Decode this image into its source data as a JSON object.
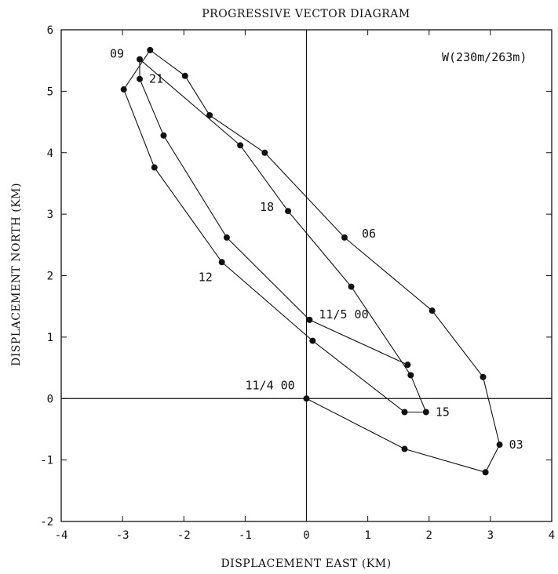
{
  "chart_data": {
    "type": "line",
    "title": "PROGRESSIVE VECTOR DIAGRAM",
    "xlabel": "DISPLACEMENT EAST (KM)",
    "ylabel": "DISPLACEMENT NORTH (KM)",
    "xlim": [
      -4,
      4
    ],
    "ylim": [
      -2,
      6
    ],
    "xticks": [
      -4,
      -3,
      -2,
      -1,
      0,
      1,
      2,
      3,
      4
    ],
    "yticks": [
      -2,
      -1,
      0,
      1,
      2,
      3,
      4,
      5,
      6
    ],
    "grid": false,
    "zero_lines": true,
    "legend": {
      "label": "W(230m/263m)",
      "placement": "top-right"
    },
    "series": [
      {
        "points": [
          {
            "x": 0.0,
            "y": 0.0
          },
          {
            "x": 1.6,
            "y": -0.82
          },
          {
            "x": 2.92,
            "y": -1.2
          },
          {
            "x": 3.15,
            "y": -0.75
          },
          {
            "x": 2.88,
            "y": 0.35
          },
          {
            "x": 2.05,
            "y": 1.43
          },
          {
            "x": 0.62,
            "y": 2.62
          },
          {
            "x": -0.68,
            "y": 4.0
          },
          {
            "x": -1.58,
            "y": 4.61
          },
          {
            "x": -1.98,
            "y": 5.25
          },
          {
            "x": -2.55,
            "y": 5.67
          },
          {
            "x": -2.98,
            "y": 5.03
          },
          {
            "x": -2.48,
            "y": 3.76
          },
          {
            "x": -1.38,
            "y": 2.22
          },
          {
            "x": 0.1,
            "y": 0.94
          },
          {
            "x": 1.6,
            "y": -0.22
          },
          {
            "x": 1.95,
            "y": -0.22
          },
          {
            "x": 1.7,
            "y": 0.38
          },
          {
            "x": 0.73,
            "y": 1.82
          },
          {
            "x": -0.3,
            "y": 3.05
          },
          {
            "x": -1.08,
            "y": 4.12
          },
          {
            "x": -2.72,
            "y": 5.52
          },
          {
            "x": -2.72,
            "y": 5.2
          },
          {
            "x": -2.33,
            "y": 4.28
          },
          {
            "x": -1.3,
            "y": 2.62
          },
          {
            "x": 0.05,
            "y": 1.28
          },
          {
            "x": 1.65,
            "y": 0.55
          }
        ]
      }
    ],
    "annotations": [
      {
        "text": "11/4 00",
        "x": 0.0,
        "y": 0.0
      },
      {
        "text": "03",
        "x": 3.15,
        "y": -0.75
      },
      {
        "text": "06",
        "x": 0.62,
        "y": 2.62
      },
      {
        "text": "09",
        "x": -2.72,
        "y": 5.52
      },
      {
        "text": "12",
        "x": -1.38,
        "y": 2.22
      },
      {
        "text": "15",
        "x": 1.95,
        "y": -0.22
      },
      {
        "text": "18",
        "x": -0.3,
        "y": 3.05
      },
      {
        "text": "21",
        "x": -2.72,
        "y": 5.2
      },
      {
        "text": "11/5 00",
        "x": 0.05,
        "y": 1.28
      }
    ]
  }
}
